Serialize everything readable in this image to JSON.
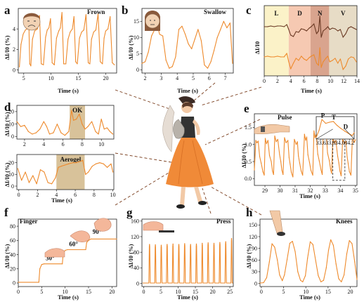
{
  "colors": {
    "trace": "#ee8a2c",
    "trace_dark": "#6b3a24",
    "highlight": "#d8c29a",
    "lead": "#7a3e1e"
  },
  "panels": {
    "a": {
      "letter": "a",
      "title": "Frown",
      "ylabel": "ΔI/I0 (%)",
      "xlabel": "Time (s)"
    },
    "b": {
      "letter": "b",
      "title": "Swallow",
      "ylabel": "ΔI/I0 (%)",
      "xlabel": "Time (s)"
    },
    "c": {
      "letter": "c",
      "ylabel": "ΔI/I0",
      "xlabel": "Time (s)",
      "regions": [
        "L",
        "D",
        "N",
        "V"
      ]
    },
    "d": {
      "letter": "d",
      "ylabel_top": "ΔI/I0 (%)",
      "ylabel_bottom": "ΔI/I0 (%)",
      "xlabel": "Time (s)",
      "label_top": "OK",
      "label_bottom": "Aerogel"
    },
    "e": {
      "letter": "e",
      "title": "Pulse",
      "ylabel": "ΔI/I0 (%)",
      "xlabel": "Time (s)",
      "inset_peaks": [
        "P",
        "T",
        "D"
      ]
    },
    "f": {
      "letter": "f",
      "title": "Finger",
      "ylabel": "ΔI/I0 (%)",
      "xlabel": "Time (s)",
      "angles": [
        "30°",
        "60°",
        "90°"
      ]
    },
    "g": {
      "letter": "g",
      "title": "Press",
      "ylabel": "ΔI/I0 (%)",
      "xlabel": "Time (s)"
    },
    "h": {
      "letter": "h",
      "title": "Knees",
      "ylabel": "ΔI/I0 (%)",
      "xlabel": "Time (s)"
    }
  },
  "chart_data": [
    {
      "panel": "a",
      "type": "line",
      "xticks": [
        5,
        10,
        15,
        20
      ],
      "xlim": [
        4,
        22
      ],
      "yticks": [
        0,
        2,
        4
      ],
      "ylim": [
        -0.3,
        6
      ],
      "series": [
        {
          "x": [
            4.2,
            4.5,
            4.9,
            5.3,
            5.6,
            5.9,
            6.1,
            6.3,
            6.6,
            7.0,
            7.5,
            7.9,
            8.2,
            8.6,
            9.0,
            9.3,
            9.6,
            9.9,
            10.2,
            10.6,
            11.0,
            11.4,
            11.7,
            12.0,
            12.3,
            12.7,
            13.1,
            13.5,
            13.9,
            14.2,
            14.5,
            14.8,
            15.2,
            15.6,
            16.0,
            16.4,
            16.8,
            17.1,
            17.4,
            17.8,
            18.2,
            18.6,
            19.0,
            19.4,
            19.7,
            20.0,
            20.4,
            20.8,
            21.2,
            21.6
          ],
          "y": [
            0.3,
            2.5,
            3.5,
            3.9,
            4.0,
            5.4,
            0.6,
            0.4,
            3.0,
            3.8,
            4.0,
            5.3,
            0.6,
            0.5,
            3.2,
            3.9,
            4.1,
            5.0,
            0.7,
            0.5,
            3.1,
            3.8,
            4.1,
            5.6,
            0.6,
            0.6,
            3.0,
            3.7,
            4.0,
            5.2,
            0.8,
            0.6,
            3.1,
            3.7,
            3.9,
            5.4,
            0.7,
            0.6,
            3.0,
            3.7,
            3.9,
            5.5,
            0.8,
            0.6,
            3.1,
            3.8,
            4.0,
            5.2,
            0.7,
            0.5
          ]
        }
      ]
    },
    {
      "panel": "b",
      "type": "line",
      "xticks": [
        2,
        3,
        4,
        5,
        6,
        7
      ],
      "xlim": [
        1.8,
        7.5
      ],
      "yticks": [
        0,
        5,
        10,
        15
      ],
      "ylim": [
        -1,
        19
      ],
      "series": [
        {
          "x": [
            1.8,
            2.0,
            2.2,
            2.4,
            2.6,
            2.75,
            2.9,
            3.1,
            3.3,
            3.5,
            3.7,
            3.9,
            4.1,
            4.3,
            4.5,
            4.7,
            4.9,
            5.1,
            5.3,
            5.5,
            5.7,
            5.9,
            6.1,
            6.3,
            6.5,
            6.7,
            6.9,
            7.1,
            7.3,
            7.45
          ],
          "y": [
            2.0,
            2.5,
            5.5,
            10.5,
            12.5,
            14.0,
            11.0,
            10.5,
            3.0,
            0.5,
            1.0,
            4.0,
            12.5,
            13.5,
            11.0,
            8.0,
            6.5,
            9.5,
            12.5,
            9.0,
            1.5,
            0.5,
            2.5,
            6.0,
            10.0,
            12.5,
            15.0,
            13.0,
            14.5,
            2.0
          ]
        }
      ]
    },
    {
      "panel": "c",
      "type": "line",
      "xticks": [
        0,
        2,
        4,
        6,
        8,
        10,
        12,
        14
      ],
      "xlim": [
        0,
        14
      ],
      "ylim": [
        0,
        1
      ],
      "regions": [
        {
          "label": "L",
          "from": 0,
          "to": 3.7
        },
        {
          "label": "D",
          "from": 3.7,
          "to": 7.0
        },
        {
          "label": "N",
          "from": 7.0,
          "to": 9.8
        },
        {
          "label": "V",
          "from": 9.8,
          "to": 14.0
        }
      ],
      "series": [
        {
          "x": [
            0,
            0.5,
            1.0,
            1.5,
            2.0,
            2.5,
            3.0,
            3.4,
            3.7,
            4.0,
            4.4,
            4.8,
            5.2,
            5.6,
            6.0,
            6.4,
            6.8,
            7.1,
            7.5,
            7.9,
            8.2,
            8.4,
            8.6,
            8.9,
            9.3,
            9.6,
            9.9,
            10.3,
            10.7,
            11.1,
            11.5,
            11.9,
            12.3,
            12.7,
            13.1,
            13.5,
            13.9
          ],
          "y": [
            0.7,
            0.7,
            0.71,
            0.7,
            0.71,
            0.71,
            0.7,
            0.73,
            0.66,
            0.58,
            0.56,
            0.63,
            0.62,
            0.67,
            0.66,
            0.64,
            0.68,
            0.7,
            0.74,
            0.6,
            0.64,
            0.85,
            0.55,
            0.64,
            0.67,
            0.7,
            0.66,
            0.68,
            0.67,
            0.64,
            0.66,
            0.55,
            0.6,
            0.68,
            0.7,
            0.68,
            0.66
          ]
        },
        {
          "x": [
            0,
            0.5,
            1.0,
            1.5,
            2.0,
            2.5,
            3.0,
            3.4,
            3.7,
            4.0,
            4.4,
            4.8,
            5.2,
            5.6,
            6.0,
            6.4,
            6.8,
            7.1,
            7.5,
            7.9,
            8.2,
            8.4,
            8.6,
            8.9,
            9.3,
            9.6,
            9.9,
            10.3,
            10.7,
            11.1,
            11.5,
            11.9,
            12.3,
            12.7,
            13.1,
            13.5,
            13.9
          ],
          "y": [
            0.27,
            0.28,
            0.27,
            0.27,
            0.28,
            0.27,
            0.27,
            0.32,
            0.2,
            0.1,
            0.18,
            0.25,
            0.22,
            0.28,
            0.24,
            0.22,
            0.26,
            0.28,
            0.3,
            0.18,
            0.15,
            0.4,
            0.12,
            0.2,
            0.25,
            0.28,
            0.2,
            0.22,
            0.25,
            0.18,
            0.24,
            0.09,
            0.14,
            0.24,
            0.27,
            0.26,
            0.2
          ]
        }
      ]
    },
    {
      "panel": "d-top",
      "type": "line",
      "xticks": [
        2,
        4,
        6,
        8,
        10
      ],
      "xlim": [
        1.2,
        11.3
      ],
      "yticks": [
        0,
        10,
        20
      ],
      "ylim": [
        -2,
        25
      ],
      "highlight": {
        "label": "OK",
        "from": 6.7,
        "to": 8.3
      },
      "series": [
        {
          "x": [
            1.2,
            1.6,
            2.0,
            2.4,
            2.8,
            3.2,
            3.6,
            4.0,
            4.3,
            4.6,
            5.0,
            5.4,
            5.8,
            6.2,
            6.6,
            6.9,
            7.1,
            7.4,
            7.7,
            8.0,
            8.3,
            8.6,
            9.0,
            9.4,
            9.7,
            10.0,
            10.3,
            10.6,
            10.9,
            11.2
          ],
          "y": [
            12,
            8,
            9,
            4,
            2,
            3,
            6,
            12,
            8,
            2,
            3,
            10,
            3,
            1,
            4,
            21,
            13,
            14,
            18,
            10,
            6,
            8,
            12,
            4,
            2,
            14,
            6,
            7,
            4,
            2
          ]
        }
      ]
    },
    {
      "panel": "d-bottom",
      "type": "line",
      "xticks": [
        0,
        2,
        4,
        6,
        8,
        10
      ],
      "xlim": [
        -0.2,
        10.1
      ],
      "yticks": [
        0,
        10,
        20
      ],
      "ylim": [
        -3,
        27
      ],
      "highlight": {
        "label": "Aerogel",
        "from": 4.0,
        "to": 7.0
      },
      "series": [
        {
          "x": [
            -0.1,
            0.3,
            0.7,
            1.1,
            1.5,
            1.9,
            2.3,
            2.7,
            3.1,
            3.5,
            3.9,
            4.2,
            4.5,
            4.9,
            5.3,
            5.7,
            6.1,
            6.5,
            6.8,
            7.1,
            7.4,
            7.8,
            8.2,
            8.6,
            9.0,
            9.4,
            9.8,
            10.0
          ],
          "y": [
            15,
            5,
            12,
            3,
            9,
            2,
            14,
            12,
            3,
            2,
            7,
            16,
            17,
            18,
            19,
            20,
            20,
            21,
            22,
            10,
            12,
            17,
            19,
            20,
            19,
            16,
            19,
            12
          ]
        }
      ]
    },
    {
      "panel": "e",
      "type": "line",
      "xticks": [
        29,
        30,
        31,
        32,
        33,
        34,
        35
      ],
      "xlim": [
        28.3,
        35.1
      ],
      "yticks": [
        0.0,
        0.5,
        1.0,
        1.5
      ],
      "ylim": [
        -0.2,
        1.9
      ],
      "series": [
        {
          "x": [
            28.3,
            28.4,
            28.47,
            28.55,
            28.65,
            28.75,
            28.87,
            28.95,
            29.02,
            29.1,
            29.2,
            29.3,
            29.42,
            29.5,
            29.57,
            29.65,
            29.75,
            29.85,
            29.97,
            30.05,
            30.12,
            30.2,
            30.3,
            30.4,
            30.52,
            30.6,
            30.67,
            30.75,
            30.85,
            30.95,
            31.07,
            31.15,
            31.22,
            31.3,
            31.4,
            31.5,
            31.62,
            31.7,
            31.77,
            31.85,
            31.95,
            32.05,
            32.17,
            32.25,
            32.32,
            32.4,
            32.5,
            32.6,
            32.72,
            32.8,
            32.87,
            32.95,
            33.05,
            33.15,
            33.27,
            33.35,
            33.42,
            33.5,
            33.6,
            33.7,
            33.82,
            33.9,
            33.97,
            34.05,
            34.15,
            34.25,
            34.37,
            34.45,
            34.52,
            34.6,
            34.7,
            34.8,
            34.92,
            35.0
          ],
          "y": [
            0.25,
            1.12,
            1.05,
            1.1,
            0.65,
            0.45,
            0.2,
            0.1,
            1.18,
            1.02,
            1.12,
            0.68,
            0.5,
            0.22,
            0.12,
            1.25,
            1.08,
            1.15,
            0.7,
            0.5,
            0.25,
            0.12,
            1.2,
            1.05,
            1.12,
            0.62,
            0.42,
            0.18,
            0.05,
            1.15,
            1.0,
            1.08,
            0.66,
            0.46,
            0.22,
            0.1,
            1.3,
            1.12,
            1.22,
            0.7,
            0.48,
            0.24,
            0.1,
            1.4,
            1.2,
            1.3,
            0.72,
            0.52,
            0.25,
            0.12,
            1.55,
            1.32,
            1.42,
            0.75,
            0.52,
            0.28,
            0.15,
            1.22,
            1.04,
            1.12,
            0.66,
            0.46,
            0.22,
            0.08,
            1.18,
            1.02,
            1.1,
            0.64,
            0.44,
            0.2,
            0.1,
            1.25,
            1.06,
            1.14
          ]
        }
      ],
      "inset": {
        "xticks": [
          33.6,
          33.8,
          34.0,
          34.2
        ],
        "xlim": [
          33.5,
          34.3
        ],
        "series": [
          {
            "x": [
              33.5,
              33.56,
              33.62,
              33.7,
              33.78,
              33.86,
              33.94,
              34.02,
              34.1,
              34.18,
              34.26,
              34.3
            ],
            "y": [
              0.1,
              0.55,
              1.22,
              0.98,
              1.05,
              1.1,
              0.85,
              0.66,
              0.5,
              0.35,
              0.22,
              0.4
            ]
          }
        ]
      }
    },
    {
      "panel": "f",
      "type": "line",
      "xticks": [
        0,
        5,
        10,
        15,
        20
      ],
      "xlim": [
        0,
        21
      ],
      "yticks": [
        0,
        20,
        40,
        60,
        80
      ],
      "ylim": [
        -5,
        90
      ],
      "series": [
        {
          "x": [
            0,
            4.4,
            4.6,
            5.0,
            5.5,
            9.4,
            9.6,
            10.0,
            10.5,
            14.4,
            14.6,
            15.0,
            15.5,
            21.0
          ],
          "y": [
            1,
            1,
            20,
            26,
            27,
            27,
            42,
            46,
            47,
            47,
            57,
            60,
            62,
            62
          ]
        }
      ]
    },
    {
      "panel": "g",
      "type": "line",
      "xticks": [
        0,
        5,
        10,
        15,
        20,
        25
      ],
      "xlim": [
        -0.5,
        26
      ],
      "yticks": [
        0,
        40,
        80,
        120,
        160
      ],
      "ylim": [
        -8,
        165
      ],
      "peaks": {
        "t": [
          1.7,
          3.4,
          5.1,
          6.8,
          8.5,
          10.2,
          11.9,
          13.6,
          15.3,
          17.0,
          18.7,
          20.4,
          22.1,
          23.8,
          25.5
        ],
        "h": [
          100,
          99,
          98,
          100,
          101,
          100,
          102,
          100,
          101,
          103,
          104,
          103,
          105,
          107,
          115
        ]
      }
    },
    {
      "panel": "h",
      "type": "line",
      "xticks": [
        0,
        5,
        10,
        15,
        20
      ],
      "xlim": [
        -0.3,
        21.5
      ],
      "yticks": [
        0,
        30,
        60,
        90,
        120,
        150
      ],
      "ylim": [
        -8,
        165
      ],
      "series": [
        {
          "x": [
            -0.3,
            0.5,
            1.2,
            1.8,
            2.4,
            3.0,
            3.6,
            4.1,
            4.7,
            5.2,
            5.8,
            6.4,
            7.0,
            7.6,
            8.2,
            8.8,
            9.3,
            9.9,
            10.4,
            11.0,
            11.6,
            12.2,
            12.8,
            13.4,
            14.0,
            14.6,
            15.1,
            15.6,
            16.2,
            16.8,
            17.4,
            18.0,
            18.6,
            19.2,
            19.8,
            20.4,
            21.0,
            21.5
          ],
          "y": [
            1,
            2,
            15,
            55,
            102,
            93,
            60,
            22,
            7,
            22,
            62,
            103,
            108,
            82,
            30,
            8,
            4,
            20,
            65,
            107,
            100,
            60,
            20,
            4,
            8,
            40,
            85,
            112,
            98,
            50,
            12,
            4,
            22,
            75,
            110,
            102,
            55,
            10
          ]
        }
      ]
    }
  ]
}
